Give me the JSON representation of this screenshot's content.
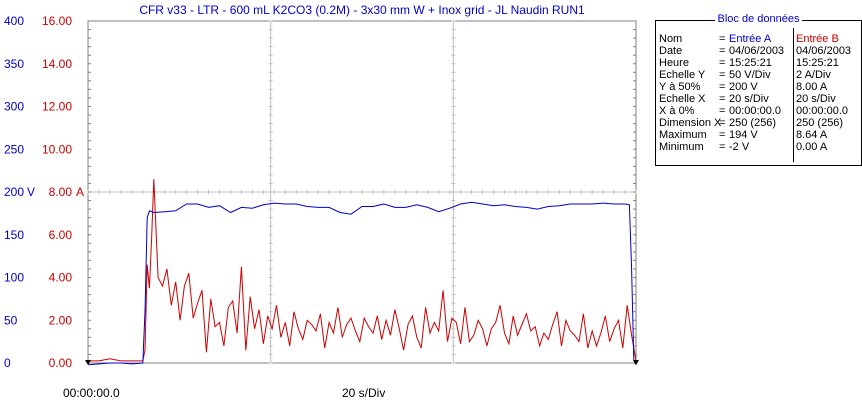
{
  "title": "CFR v33 - LTR - 600 mL K2CO3 (0.2M) - 3x30 mm W + Inox grid - JL Naudin RUN1",
  "x_start_label": "00:00:00.0",
  "x_div_label": "20 s/Div",
  "unit_left": "V",
  "unit_right": "A",
  "bloc": {
    "title": "Bloc de données",
    "rows": [
      {
        "name": "Nom",
        "sep": "=",
        "a": "Entrée A",
        "b": "Entrée B"
      },
      {
        "name": "Date",
        "sep": "=",
        "a": "04/06/2003",
        "b": "04/06/2003"
      },
      {
        "name": "Heure",
        "sep": "=",
        "a": "15:25:21",
        "b": "15:25:21"
      },
      {
        "name": "Echelle Y",
        "sep": "=",
        "a": "50 V/Div",
        "b": "2 A/Div"
      },
      {
        "name": "Y à 50%",
        "sep": "=",
        "a": "200 V",
        "b": "8.00 A"
      },
      {
        "name": "Echelle X",
        "sep": "=",
        "a": "20 s/Div",
        "b": "20 s/Div"
      },
      {
        "name": "X à 0%",
        "sep": "=",
        "a": "00:00:00.0",
        "b": "00:00:00.0"
      },
      {
        "name": "Dimension X",
        "sep": "=",
        "a": "250 (256)",
        "b": "250 (256)"
      },
      {
        "name": "Maximum",
        "sep": "=",
        "a": "194 V",
        "b": "8.64 A"
      },
      {
        "name": "Minimum",
        "sep": "=",
        "a": "-2 V",
        "b": "0.00 A"
      }
    ]
  },
  "colors": {
    "voltage": "#0000cc",
    "current": "#cc0000",
    "grid": "#c0c0c0"
  },
  "chart_data": {
    "type": "line",
    "title": "CFR v33 - LTR - 600 mL K2CO3 (0.2M) - 3x30 mm W + Inox grid - JL Naudin RUN1",
    "grid": true,
    "xlim": [
      0,
      250
    ],
    "x_start": "00:00:00.0",
    "x_scale": "20 s/Div",
    "y_left": {
      "unit": "V",
      "ylim": [
        0,
        400
      ],
      "ticks": [
        0,
        50,
        100,
        150,
        200,
        250,
        300,
        350,
        400
      ]
    },
    "y_right": {
      "unit": "A",
      "ylim": [
        0,
        16
      ],
      "ticks": [
        "0.00",
        "2.00",
        "4.00",
        "6.00",
        "8.00",
        "10.00",
        "12.00",
        "14.00",
        "16.00"
      ]
    },
    "series": [
      {
        "name": "Entrée A",
        "axis": "left",
        "x": [
          0,
          5,
          10,
          15,
          20,
          25,
          26,
          27,
          28,
          30,
          35,
          40,
          45,
          50,
          55,
          60,
          65,
          70,
          75,
          80,
          85,
          90,
          95,
          100,
          105,
          110,
          115,
          120,
          125,
          130,
          135,
          140,
          145,
          150,
          155,
          160,
          165,
          170,
          175,
          180,
          185,
          190,
          195,
          200,
          205,
          210,
          215,
          220,
          225,
          230,
          235,
          240,
          245,
          247,
          248,
          249,
          250
        ],
        "y": [
          -2,
          -1,
          0,
          0,
          -1,
          0,
          60,
          170,
          178,
          176,
          177,
          178,
          186,
          186,
          182,
          184,
          176,
          182,
          181,
          185,
          187,
          186,
          186,
          183,
          182,
          182,
          176,
          174,
          183,
          183,
          186,
          182,
          182,
          185,
          182,
          177,
          181,
          186,
          188,
          186,
          184,
          185,
          183,
          182,
          180,
          183,
          184,
          186,
          186,
          186,
          187,
          186,
          186,
          185,
          110,
          3,
          -2
        ]
      },
      {
        "name": "Entrée B",
        "axis": "right",
        "x": [
          0,
          5,
          10,
          15,
          20,
          25,
          26,
          27,
          28,
          29,
          30,
          32,
          34,
          36,
          38,
          40,
          42,
          44,
          46,
          48,
          50,
          52,
          54,
          56,
          58,
          60,
          62,
          64,
          66,
          68,
          70,
          72,
          74,
          76,
          78,
          80,
          82,
          84,
          86,
          88,
          90,
          92,
          94,
          96,
          98,
          100,
          102,
          104,
          106,
          108,
          110,
          112,
          114,
          116,
          118,
          120,
          122,
          124,
          126,
          128,
          130,
          132,
          134,
          136,
          138,
          140,
          142,
          144,
          146,
          148,
          150,
          152,
          154,
          156,
          158,
          160,
          162,
          164,
          166,
          168,
          170,
          172,
          174,
          176,
          178,
          180,
          182,
          184,
          186,
          188,
          190,
          192,
          194,
          196,
          198,
          200,
          202,
          204,
          206,
          208,
          210,
          212,
          214,
          216,
          218,
          220,
          222,
          224,
          226,
          228,
          230,
          232,
          234,
          236,
          238,
          240,
          242,
          244,
          246,
          248,
          250
        ],
        "y": [
          0.1,
          0.1,
          0.2,
          0.1,
          0.1,
          0.1,
          0.6,
          4.6,
          3.5,
          5.8,
          8.6,
          4.0,
          3.6,
          4.4,
          2.7,
          3.8,
          2.0,
          3.6,
          4.2,
          2.1,
          2.8,
          3.4,
          0.5,
          3.0,
          1.7,
          1.9,
          0.8,
          2.6,
          2.9,
          1.4,
          4.5,
          0.6,
          3.1,
          1.6,
          2.5,
          0.9,
          2.2,
          1.6,
          2.7,
          1.2,
          1.9,
          0.8,
          2.4,
          1.6,
          1.1,
          2.0,
          1.8,
          1.5,
          2.3,
          0.7,
          1.9,
          1.4,
          2.6,
          1.2,
          1.8,
          2.1,
          1.5,
          1.0,
          2.1,
          1.7,
          1.4,
          2.2,
          1.1,
          2.0,
          1.3,
          2.5,
          1.6,
          0.6,
          1.8,
          2.2,
          1.2,
          0.7,
          2.6,
          1.4,
          1.9,
          1.5,
          3.4,
          1.0,
          2.1,
          1.9,
          0.9,
          2.6,
          1.0,
          1.3,
          2.0,
          1.6,
          0.8,
          1.6,
          1.9,
          2.7,
          1.4,
          0.9,
          2.2,
          1.3,
          1.8,
          2.3,
          1.5,
          1.7,
          0.8,
          1.4,
          1.1,
          1.8,
          2.4,
          0.8,
          2.0,
          1.5,
          1.3,
          1.0,
          2.3,
          0.7,
          1.5,
          0.8,
          1.4,
          2.2,
          1.0,
          1.6,
          2.0,
          0.7,
          2.7,
          1.3,
          0.1
        ]
      }
    ]
  }
}
